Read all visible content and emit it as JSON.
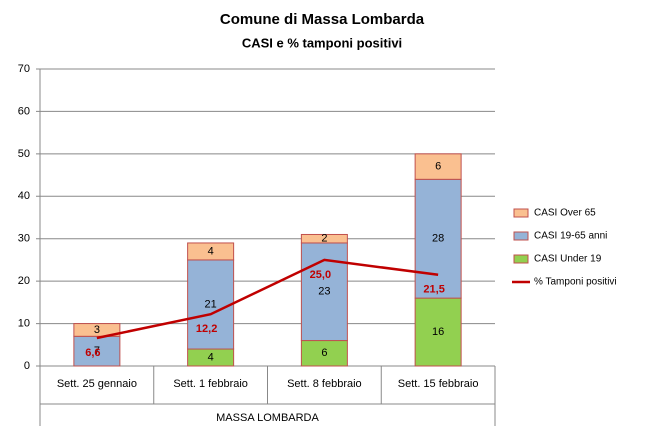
{
  "chart_data": {
    "type": "bar",
    "stacked": true,
    "title": "Comune di Massa Lombarda",
    "subtitle": "CASI e % tamponi positivi",
    "group_label": "MASSA LOMBARDA",
    "categories": [
      "Sett. 25 gennaio",
      "Sett. 1 febbraio",
      "Sett. 8 febbraio",
      "Sett. 15 febbraio"
    ],
    "series": [
      {
        "name": "CASI Under 19",
        "color": "#92D050",
        "values": [
          null,
          4,
          6,
          16
        ]
      },
      {
        "name": "CASI 19-65 anni",
        "color": "#95B3D7",
        "values": [
          7,
          21,
          23,
          28
        ]
      },
      {
        "name": "CASI Over 65",
        "color": "#FAC090",
        "values": [
          3,
          4,
          2,
          6
        ]
      },
      {
        "name": "% Tamponi positivi",
        "type": "line",
        "color": "#C00000",
        "values": [
          6.6,
          12.2,
          25.0,
          21.5
        ],
        "value_labels": [
          "6,6",
          "12,2",
          "25,0",
          "21,5"
        ]
      }
    ],
    "ylim": [
      0,
      70
    ],
    "yticks": [
      0,
      10,
      20,
      30,
      40,
      50,
      60,
      70
    ],
    "grid": true,
    "legend": "right",
    "bar_border": "#C0504D"
  }
}
